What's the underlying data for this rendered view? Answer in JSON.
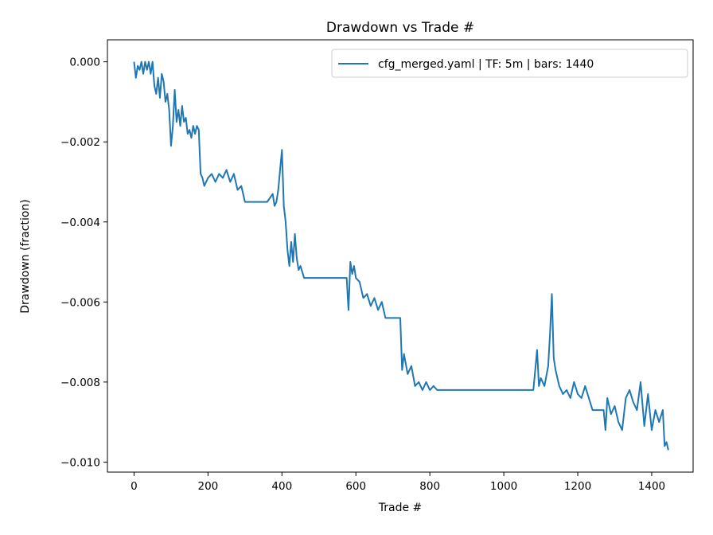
{
  "chart_data": {
    "type": "line",
    "title": "Drawdown vs Trade #",
    "xlabel": "Trade #",
    "ylabel": "Drawdown (fraction)",
    "xlim": [
      -72,
      1512
    ],
    "ylim": [
      -0.01025,
      0.00055
    ],
    "xticks": [
      0,
      200,
      400,
      600,
      800,
      1000,
      1200,
      1400
    ],
    "xtick_labels": [
      "0",
      "200",
      "400",
      "600",
      "800",
      "1000",
      "1200",
      "1400"
    ],
    "yticks": [
      0.0,
      -0.002,
      -0.004,
      -0.006,
      -0.008,
      -0.01
    ],
    "ytick_labels": [
      "0.000",
      "−0.002",
      "−0.004",
      "−0.006",
      "−0.008",
      "−0.010"
    ],
    "grid": false,
    "legend_position": "top-right",
    "series": [
      {
        "name": "cfg_merged.yaml | TF: 5m | bars: 1440",
        "color": "#1f77b4",
        "x": [
          0,
          5,
          10,
          15,
          20,
          25,
          30,
          35,
          40,
          45,
          50,
          55,
          60,
          65,
          70,
          75,
          80,
          85,
          90,
          95,
          100,
          105,
          110,
          115,
          120,
          125,
          130,
          135,
          140,
          145,
          150,
          155,
          160,
          165,
          170,
          175,
          180,
          185,
          190,
          195,
          200,
          210,
          220,
          230,
          240,
          250,
          260,
          270,
          280,
          290,
          300,
          320,
          340,
          360,
          375,
          380,
          385,
          390,
          395,
          400,
          405,
          410,
          415,
          420,
          425,
          430,
          435,
          440,
          445,
          450,
          460,
          480,
          520,
          560,
          575,
          580,
          585,
          590,
          595,
          600,
          610,
          620,
          630,
          640,
          650,
          660,
          670,
          680,
          700,
          720,
          725,
          730,
          740,
          750,
          760,
          770,
          780,
          790,
          800,
          810,
          820,
          840,
          900,
          1000,
          1080,
          1085,
          1090,
          1095,
          1100,
          1110,
          1120,
          1125,
          1130,
          1135,
          1140,
          1150,
          1160,
          1170,
          1180,
          1190,
          1200,
          1210,
          1220,
          1240,
          1260,
          1270,
          1275,
          1280,
          1290,
          1300,
          1310,
          1320,
          1330,
          1340,
          1350,
          1360,
          1370,
          1380,
          1390,
          1400,
          1410,
          1420,
          1430,
          1435,
          1440,
          1445
        ],
        "y": [
          0.0,
          -0.0004,
          -0.0001,
          -0.0002,
          0.0,
          -0.0003,
          0.0,
          -0.0002,
          0.0,
          -0.0003,
          0.0,
          -0.0006,
          -0.0008,
          -0.0004,
          -0.0009,
          -0.0003,
          -0.0005,
          -0.001,
          -0.0008,
          -0.0012,
          -0.0021,
          -0.0016,
          -0.0007,
          -0.0015,
          -0.0012,
          -0.0016,
          -0.0011,
          -0.0015,
          -0.0014,
          -0.0018,
          -0.0017,
          -0.0019,
          -0.0016,
          -0.0018,
          -0.0016,
          -0.0017,
          -0.0028,
          -0.0029,
          -0.0031,
          -0.003,
          -0.0029,
          -0.0028,
          -0.003,
          -0.0028,
          -0.0029,
          -0.0027,
          -0.003,
          -0.0028,
          -0.0032,
          -0.0031,
          -0.0035,
          -0.0035,
          -0.0035,
          -0.0035,
          -0.0033,
          -0.0036,
          -0.0035,
          -0.0032,
          -0.0027,
          -0.0022,
          -0.0036,
          -0.004,
          -0.0047,
          -0.0051,
          -0.0045,
          -0.005,
          -0.0043,
          -0.0049,
          -0.0052,
          -0.0051,
          -0.0054,
          -0.0054,
          -0.0054,
          -0.0054,
          -0.0054,
          -0.0062,
          -0.005,
          -0.0053,
          -0.0051,
          -0.0054,
          -0.0055,
          -0.0059,
          -0.0058,
          -0.0061,
          -0.0059,
          -0.0062,
          -0.006,
          -0.0064,
          -0.0064,
          -0.0064,
          -0.0077,
          -0.0073,
          -0.0078,
          -0.0076,
          -0.0081,
          -0.008,
          -0.0082,
          -0.008,
          -0.0082,
          -0.0081,
          -0.0082,
          -0.0082,
          -0.0082,
          -0.0082,
          -0.0082,
          -0.0077,
          -0.0072,
          -0.0081,
          -0.0079,
          -0.0081,
          -0.0076,
          -0.0068,
          -0.0058,
          -0.0074,
          -0.0077,
          -0.0081,
          -0.0083,
          -0.0082,
          -0.0084,
          -0.008,
          -0.0083,
          -0.0084,
          -0.0081,
          -0.0087,
          -0.0087,
          -0.0087,
          -0.0092,
          -0.0084,
          -0.0088,
          -0.0086,
          -0.009,
          -0.0092,
          -0.0084,
          -0.0082,
          -0.0085,
          -0.0087,
          -0.008,
          -0.0091,
          -0.0083,
          -0.0092,
          -0.0087,
          -0.009,
          -0.0087,
          -0.0096,
          -0.0095,
          -0.0097
        ]
      }
    ]
  }
}
